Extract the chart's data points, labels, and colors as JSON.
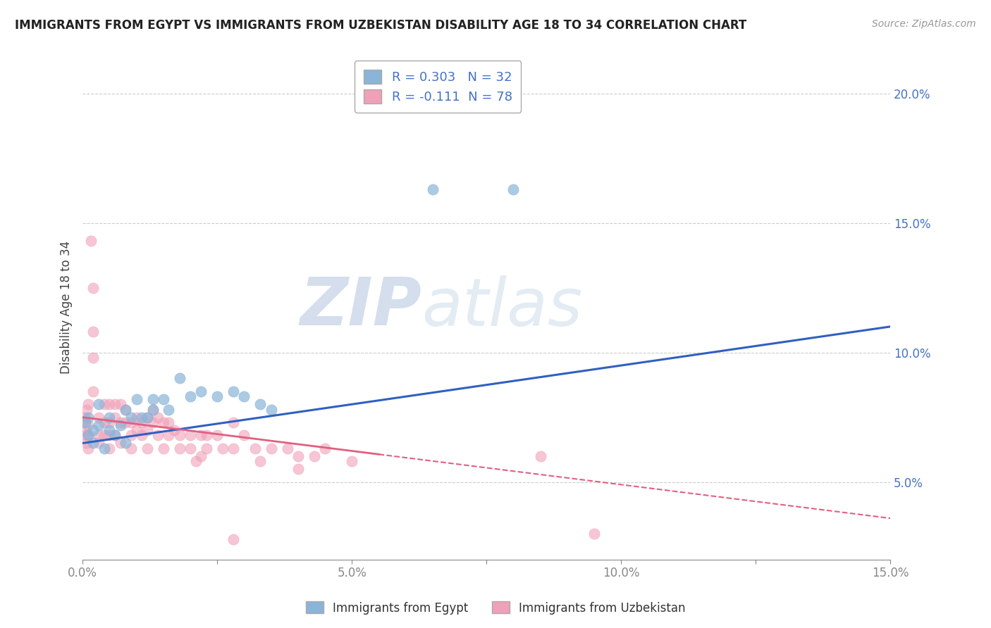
{
  "title": "IMMIGRANTS FROM EGYPT VS IMMIGRANTS FROM UZBEKISTAN DISABILITY AGE 18 TO 34 CORRELATION CHART",
  "source": "Source: ZipAtlas.com",
  "ylabel": "Disability Age 18 to 34",
  "xlim": [
    0.0,
    0.15
  ],
  "ylim": [
    0.02,
    0.215
  ],
  "xticks": [
    0.0,
    0.025,
    0.05,
    0.075,
    0.1,
    0.125,
    0.15
  ],
  "xticklabels": [
    "0.0%",
    "",
    "5.0%",
    "",
    "10.0%",
    "",
    "15.0%"
  ],
  "yticks": [
    0.05,
    0.1,
    0.15,
    0.2
  ],
  "yticklabels": [
    "5.0%",
    "10.0%",
    "15.0%",
    "20.0%"
  ],
  "egypt_color": "#8ab4d8",
  "uzbekistan_color": "#f0a0b8",
  "egypt_R": 0.303,
  "egypt_N": 32,
  "uzbekistan_R": -0.111,
  "uzbekistan_N": 78,
  "egypt_line_color": "#3060c0",
  "uzbekistan_line_color": "#e06080",
  "uzbekistan_line_solid_end": 0.055,
  "watermark_zip": "ZIP",
  "watermark_atlas": "atlas",
  "egypt_scatter": [
    [
      0.0005,
      0.073
    ],
    [
      0.001,
      0.075
    ],
    [
      0.001,
      0.068
    ],
    [
      0.002,
      0.07
    ],
    [
      0.002,
      0.065
    ],
    [
      0.003,
      0.08
    ],
    [
      0.003,
      0.072
    ],
    [
      0.004,
      0.063
    ],
    [
      0.005,
      0.075
    ],
    [
      0.005,
      0.07
    ],
    [
      0.006,
      0.068
    ],
    [
      0.007,
      0.072
    ],
    [
      0.008,
      0.078
    ],
    [
      0.008,
      0.065
    ],
    [
      0.009,
      0.075
    ],
    [
      0.01,
      0.082
    ],
    [
      0.011,
      0.075
    ],
    [
      0.012,
      0.075
    ],
    [
      0.013,
      0.082
    ],
    [
      0.013,
      0.078
    ],
    [
      0.015,
      0.082
    ],
    [
      0.016,
      0.078
    ],
    [
      0.018,
      0.09
    ],
    [
      0.02,
      0.083
    ],
    [
      0.022,
      0.085
    ],
    [
      0.025,
      0.083
    ],
    [
      0.028,
      0.085
    ],
    [
      0.03,
      0.083
    ],
    [
      0.033,
      0.08
    ],
    [
      0.035,
      0.078
    ],
    [
      0.065,
      0.163
    ],
    [
      0.08,
      0.163
    ]
  ],
  "uzbekistan_scatter": [
    [
      0.0002,
      0.073
    ],
    [
      0.0004,
      0.075
    ],
    [
      0.0005,
      0.07
    ],
    [
      0.0006,
      0.068
    ],
    [
      0.0007,
      0.065
    ],
    [
      0.0008,
      0.078
    ],
    [
      0.001,
      0.08
    ],
    [
      0.001,
      0.072
    ],
    [
      0.001,
      0.068
    ],
    [
      0.001,
      0.063
    ],
    [
      0.0015,
      0.143
    ],
    [
      0.002,
      0.125
    ],
    [
      0.002,
      0.108
    ],
    [
      0.002,
      0.098
    ],
    [
      0.002,
      0.085
    ],
    [
      0.003,
      0.075
    ],
    [
      0.003,
      0.068
    ],
    [
      0.003,
      0.065
    ],
    [
      0.004,
      0.08
    ],
    [
      0.004,
      0.073
    ],
    [
      0.004,
      0.068
    ],
    [
      0.005,
      0.08
    ],
    [
      0.005,
      0.073
    ],
    [
      0.005,
      0.068
    ],
    [
      0.005,
      0.063
    ],
    [
      0.006,
      0.08
    ],
    [
      0.006,
      0.075
    ],
    [
      0.006,
      0.068
    ],
    [
      0.007,
      0.08
    ],
    [
      0.007,
      0.073
    ],
    [
      0.007,
      0.065
    ],
    [
      0.008,
      0.078
    ],
    [
      0.008,
      0.073
    ],
    [
      0.009,
      0.073
    ],
    [
      0.009,
      0.068
    ],
    [
      0.009,
      0.063
    ],
    [
      0.01,
      0.075
    ],
    [
      0.01,
      0.07
    ],
    [
      0.011,
      0.073
    ],
    [
      0.011,
      0.068
    ],
    [
      0.012,
      0.075
    ],
    [
      0.012,
      0.07
    ],
    [
      0.012,
      0.063
    ],
    [
      0.013,
      0.078
    ],
    [
      0.013,
      0.073
    ],
    [
      0.014,
      0.075
    ],
    [
      0.014,
      0.068
    ],
    [
      0.015,
      0.073
    ],
    [
      0.015,
      0.063
    ],
    [
      0.016,
      0.073
    ],
    [
      0.016,
      0.068
    ],
    [
      0.017,
      0.07
    ],
    [
      0.018,
      0.068
    ],
    [
      0.018,
      0.063
    ],
    [
      0.02,
      0.068
    ],
    [
      0.02,
      0.063
    ],
    [
      0.021,
      0.058
    ],
    [
      0.022,
      0.068
    ],
    [
      0.022,
      0.06
    ],
    [
      0.023,
      0.068
    ],
    [
      0.023,
      0.063
    ],
    [
      0.025,
      0.068
    ],
    [
      0.026,
      0.063
    ],
    [
      0.028,
      0.073
    ],
    [
      0.028,
      0.063
    ],
    [
      0.03,
      0.068
    ],
    [
      0.032,
      0.063
    ],
    [
      0.033,
      0.058
    ],
    [
      0.035,
      0.063
    ],
    [
      0.038,
      0.063
    ],
    [
      0.04,
      0.06
    ],
    [
      0.04,
      0.055
    ],
    [
      0.043,
      0.06
    ],
    [
      0.045,
      0.063
    ],
    [
      0.05,
      0.058
    ],
    [
      0.085,
      0.06
    ],
    [
      0.028,
      0.028
    ],
    [
      0.095,
      0.03
    ]
  ]
}
